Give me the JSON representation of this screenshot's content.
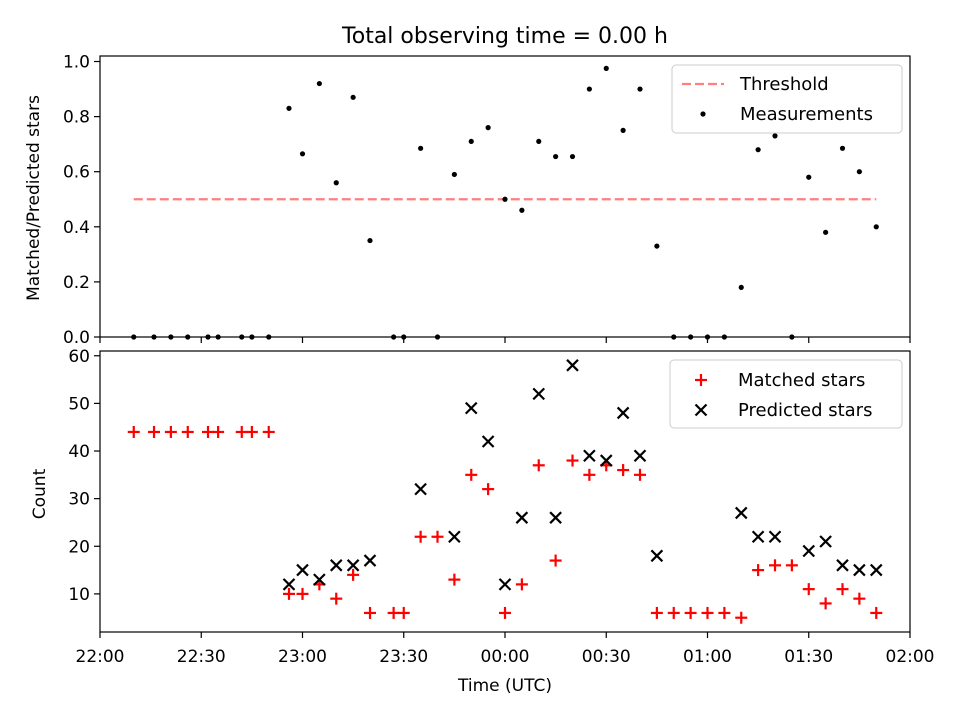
{
  "chart_data": [
    {
      "type": "scatter",
      "title": "Total observing time = 0.00 h",
      "xlabel": "",
      "ylabel": "Matched/Predicted stars",
      "ylim": [
        0,
        1.02
      ],
      "yticks": [
        "0.0",
        "0.2",
        "0.4",
        "0.6",
        "0.8",
        "1.0"
      ],
      "legend_position": "top-right",
      "threshold": {
        "name": "Threshold",
        "value": 0.5,
        "x_start": "22:10",
        "x_end": "01:50",
        "color": "#ff7f7f"
      },
      "series": [
        {
          "name": "Measurements",
          "color": "#000000",
          "points": [
            [
              "22:10",
              0
            ],
            [
              "22:16",
              0
            ],
            [
              "22:21",
              0
            ],
            [
              "22:26",
              0
            ],
            [
              "22:32",
              0
            ],
            [
              "22:35",
              0
            ],
            [
              "22:42",
              0
            ],
            [
              "22:45",
              0
            ],
            [
              "22:50",
              0
            ],
            [
              "22:56",
              0.83
            ],
            [
              "23:00",
              0.665
            ],
            [
              "23:05",
              0.92
            ],
            [
              "23:10",
              0.56
            ],
            [
              "23:15",
              0.87
            ],
            [
              "23:20",
              0.35
            ],
            [
              "23:27",
              0
            ],
            [
              "23:30",
              0
            ],
            [
              "23:35",
              0.685
            ],
            [
              "23:40",
              0
            ],
            [
              "23:45",
              0.59
            ],
            [
              "23:50",
              0.71
            ],
            [
              "23:55",
              0.76
            ],
            [
              "00:00",
              0.5
            ],
            [
              "00:05",
              0.46
            ],
            [
              "00:10",
              0.71
            ],
            [
              "00:15",
              0.655
            ],
            [
              "00:20",
              0.655
            ],
            [
              "00:25",
              0.9
            ],
            [
              "00:30",
              0.975
            ],
            [
              "00:35",
              0.75
            ],
            [
              "00:40",
              0.9
            ],
            [
              "00:45",
              0.33
            ],
            [
              "00:50",
              0
            ],
            [
              "00:55",
              0
            ],
            [
              "01:00",
              0
            ],
            [
              "01:05",
              0
            ],
            [
              "01:10",
              0.18
            ],
            [
              "01:15",
              0.68
            ],
            [
              "01:20",
              0.73
            ],
            [
              "01:25",
              0
            ],
            [
              "01:30",
              0.58
            ],
            [
              "01:35",
              0.38
            ],
            [
              "01:40",
              0.685
            ],
            [
              "01:45",
              0.6
            ],
            [
              "01:50",
              0.4
            ]
          ]
        }
      ]
    },
    {
      "type": "scatter",
      "title": "",
      "xlabel": "Time (UTC)",
      "ylabel": "Count",
      "xlim": [
        "22:00",
        "02:00"
      ],
      "xticks": [
        "22:00",
        "22:30",
        "23:00",
        "23:30",
        "00:00",
        "00:30",
        "01:00",
        "01:30",
        "02:00"
      ],
      "ylim": [
        2,
        61
      ],
      "yticks": [
        "10",
        "20",
        "30",
        "40",
        "50",
        "60"
      ],
      "legend_position": "top-right",
      "series": [
        {
          "name": "Matched stars",
          "marker": "+",
          "color": "#ff0000",
          "points": [
            [
              "22:10",
              44
            ],
            [
              "22:16",
              44
            ],
            [
              "22:21",
              44
            ],
            [
              "22:26",
              44
            ],
            [
              "22:32",
              44
            ],
            [
              "22:35",
              44
            ],
            [
              "22:42",
              44
            ],
            [
              "22:45",
              44
            ],
            [
              "22:50",
              44
            ],
            [
              "22:56",
              10
            ],
            [
              "23:00",
              10
            ],
            [
              "23:05",
              12
            ],
            [
              "23:10",
              9
            ],
            [
              "23:15",
              14
            ],
            [
              "23:20",
              6
            ],
            [
              "23:27",
              6
            ],
            [
              "23:30",
              6
            ],
            [
              "23:35",
              22
            ],
            [
              "23:40",
              22
            ],
            [
              "23:45",
              13
            ],
            [
              "23:50",
              35
            ],
            [
              "23:55",
              32
            ],
            [
              "00:00",
              6
            ],
            [
              "00:05",
              12
            ],
            [
              "00:10",
              37
            ],
            [
              "00:15",
              17
            ],
            [
              "00:20",
              38
            ],
            [
              "00:25",
              35
            ],
            [
              "00:30",
              37
            ],
            [
              "00:35",
              36
            ],
            [
              "00:40",
              35
            ],
            [
              "00:45",
              6
            ],
            [
              "00:50",
              6
            ],
            [
              "00:55",
              6
            ],
            [
              "01:00",
              6
            ],
            [
              "01:05",
              6
            ],
            [
              "01:10",
              5
            ],
            [
              "01:15",
              15
            ],
            [
              "01:20",
              16
            ],
            [
              "01:25",
              16
            ],
            [
              "01:30",
              11
            ],
            [
              "01:35",
              8
            ],
            [
              "01:40",
              11
            ],
            [
              "01:45",
              9
            ],
            [
              "01:50",
              6
            ]
          ]
        },
        {
          "name": "Predicted stars",
          "marker": "x",
          "color": "#000000",
          "points": [
            [
              "22:56",
              12
            ],
            [
              "23:00",
              15
            ],
            [
              "23:05",
              13
            ],
            [
              "23:10",
              16
            ],
            [
              "23:15",
              16
            ],
            [
              "23:20",
              17
            ],
            [
              "23:35",
              32
            ],
            [
              "23:45",
              22
            ],
            [
              "23:50",
              49
            ],
            [
              "23:55",
              42
            ],
            [
              "00:00",
              12
            ],
            [
              "00:05",
              26
            ],
            [
              "00:10",
              52
            ],
            [
              "00:15",
              26
            ],
            [
              "00:20",
              58
            ],
            [
              "00:25",
              39
            ],
            [
              "00:30",
              38
            ],
            [
              "00:35",
              48
            ],
            [
              "00:40",
              39
            ],
            [
              "00:45",
              18
            ],
            [
              "01:10",
              27
            ],
            [
              "01:15",
              22
            ],
            [
              "01:20",
              22
            ],
            [
              "01:30",
              19
            ],
            [
              "01:35",
              21
            ],
            [
              "01:40",
              16
            ],
            [
              "01:45",
              15
            ],
            [
              "01:50",
              15
            ]
          ]
        }
      ]
    }
  ]
}
